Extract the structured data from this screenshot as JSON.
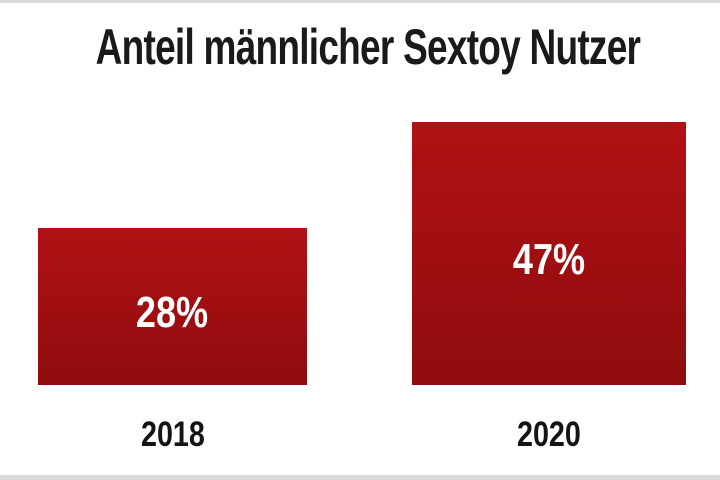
{
  "page": {
    "background": "#ffffff",
    "edge_strip_color": "#d9d9d9"
  },
  "title": "Anteil männlicher Sextoy Nutzer",
  "chart_data": {
    "type": "bar",
    "title": "Anteil männlicher Sextoy Nutzer",
    "categories": [
      "2018",
      "2020"
    ],
    "values": [
      28,
      47
    ],
    "value_labels": [
      "28%",
      "47%"
    ],
    "unit": "%",
    "ylim": [
      0,
      50
    ],
    "grid": false,
    "legend": false,
    "bar_color_top": "#b11114",
    "bar_color_bottom": "#8f0c0f",
    "value_label_color": "#ffffff",
    "category_label_color": "#141414",
    "title_color": "#1a1a1a"
  }
}
